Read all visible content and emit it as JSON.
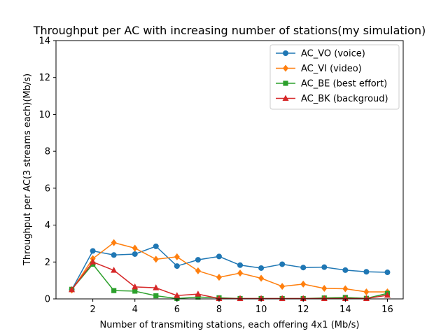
{
  "chart_data": {
    "type": "line",
    "title": "Throughput per AC with increasing number of stations(my simulation)",
    "xlabel": "Number of transmiting stations, each offering 4x1 (Mb/s)",
    "ylabel": "Throughput per AC(3 streams each)(Mb/s)",
    "xlim": [
      0.25,
      16.75
    ],
    "ylim": [
      0,
      14
    ],
    "xticks": [
      2,
      4,
      6,
      8,
      10,
      12,
      14,
      16
    ],
    "yticks": [
      0,
      2,
      4,
      6,
      8,
      10,
      12,
      14
    ],
    "grid": false,
    "legend_position": "top-right",
    "x": [
      1,
      2,
      3,
      4,
      5,
      6,
      7,
      8,
      9,
      10,
      11,
      12,
      13,
      14,
      15,
      16
    ],
    "series": [
      {
        "name": "AC_VO (voice)",
        "color": "#1f77b4",
        "marker": "circle",
        "values": [
          0.5,
          2.6,
          2.38,
          2.43,
          2.85,
          1.78,
          2.12,
          2.3,
          1.83,
          1.67,
          1.88,
          1.7,
          1.72,
          1.56,
          1.47,
          1.44
        ]
      },
      {
        "name": "AC_VI (video)",
        "color": "#ff7f0e",
        "marker": "diamond",
        "values": [
          0.48,
          2.18,
          3.05,
          2.75,
          2.15,
          2.28,
          1.52,
          1.17,
          1.4,
          1.12,
          0.68,
          0.8,
          0.57,
          0.55,
          0.38,
          0.38
        ]
      },
      {
        "name": "AC_BE (best effort)",
        "color": "#2ca02c",
        "marker": "square",
        "values": [
          0.52,
          1.88,
          0.45,
          0.42,
          0.17,
          0.02,
          0.1,
          0.06,
          0.02,
          0.02,
          0.02,
          0.02,
          0.05,
          0.08,
          0.03,
          0.3
        ]
      },
      {
        "name": "AC_BK (backgroud)",
        "color": "#d62728",
        "marker": "triangle",
        "values": [
          0.5,
          2.0,
          1.55,
          0.65,
          0.6,
          0.18,
          0.26,
          0.02,
          0.02,
          0.02,
          0.02,
          0.02,
          0.02,
          0.02,
          0.02,
          0.2
        ]
      }
    ]
  }
}
